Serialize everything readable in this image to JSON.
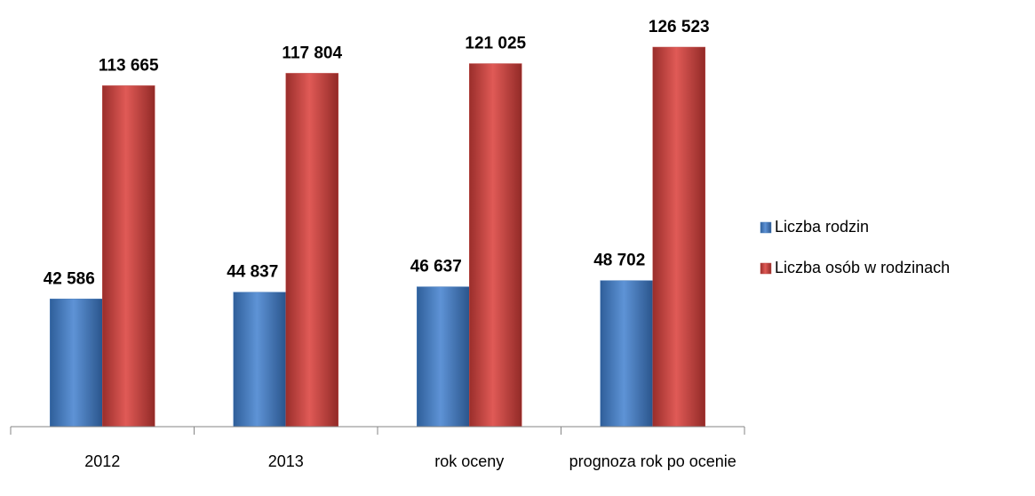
{
  "chart_data": {
    "type": "bar",
    "categories": [
      "2012",
      "2013",
      "rok oceny",
      "prognoza rok po ocenie"
    ],
    "series": [
      {
        "name": "Liczba rodzin",
        "color": "#4f81bd",
        "values": [
          42586,
          44837,
          46637,
          48702
        ],
        "value_labels": [
          "42 586",
          "44 837",
          "46 637",
          "48 702"
        ]
      },
      {
        "name": "Liczba osób w rodzinach",
        "color": "#c0504d",
        "values": [
          113665,
          117804,
          121025,
          126523
        ],
        "value_labels": [
          "113 665",
          "117 804",
          "121 025",
          "126 523"
        ]
      }
    ],
    "legend": "right"
  }
}
